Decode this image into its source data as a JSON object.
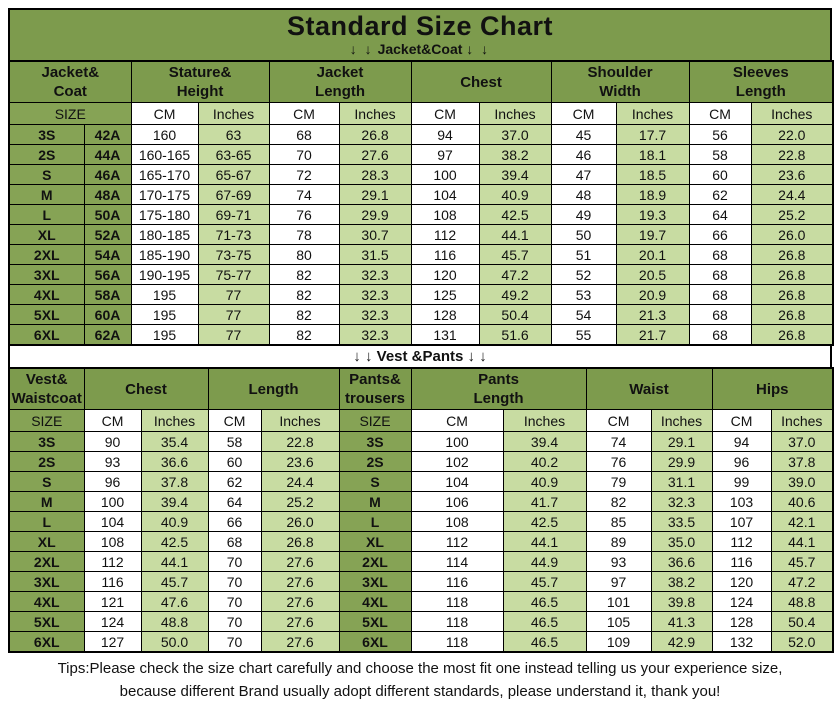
{
  "title": "Standard Size Chart",
  "banners": {
    "jacket": {
      "arrows_left": "↓ ↓",
      "label": "Jacket&Coat",
      "arrows_right": "↓ ↓"
    },
    "vest": {
      "arrows_left": "↓ ↓",
      "label": "Vest &Pants",
      "arrows_right": "↓ ↓"
    }
  },
  "colors": {
    "header_green": "#7d9b4d",
    "size_cell_green": "#86a355",
    "inches_cell_green": "#c8dca2",
    "cm_cell_white": "#ffffff",
    "border_black": "#000000",
    "text_black": "#111111"
  },
  "jacket_table": {
    "groups": [
      {
        "label": "Jacket&\nCoat",
        "span": 2
      },
      {
        "label": "Stature&\nHeight",
        "span": 2
      },
      {
        "label": "Jacket\nLength",
        "span": 2
      },
      {
        "label": "Chest",
        "span": 2
      },
      {
        "label": "Shoulder\nWidth",
        "span": 2
      },
      {
        "label": "Sleeves\nLength",
        "span": 2
      }
    ],
    "subheader": [
      {
        "label": "SIZE",
        "span": 2
      },
      {
        "label": "CM"
      },
      {
        "label": "Inches"
      },
      {
        "label": "CM"
      },
      {
        "label": "Inches"
      },
      {
        "label": "CM"
      },
      {
        "label": "Inches"
      },
      {
        "label": "CM"
      },
      {
        "label": "Inches"
      },
      {
        "label": "CM"
      },
      {
        "label": "Inches"
      }
    ],
    "rows": [
      [
        "3S",
        "42A",
        "160",
        "63",
        "68",
        "26.8",
        "94",
        "37.0",
        "45",
        "17.7",
        "56",
        "22.0"
      ],
      [
        "2S",
        "44A",
        "160-165",
        "63-65",
        "70",
        "27.6",
        "97",
        "38.2",
        "46",
        "18.1",
        "58",
        "22.8"
      ],
      [
        "S",
        "46A",
        "165-170",
        "65-67",
        "72",
        "28.3",
        "100",
        "39.4",
        "47",
        "18.5",
        "60",
        "23.6"
      ],
      [
        "M",
        "48A",
        "170-175",
        "67-69",
        "74",
        "29.1",
        "104",
        "40.9",
        "48",
        "18.9",
        "62",
        "24.4"
      ],
      [
        "L",
        "50A",
        "175-180",
        "69-71",
        "76",
        "29.9",
        "108",
        "42.5",
        "49",
        "19.3",
        "64",
        "25.2"
      ],
      [
        "XL",
        "52A",
        "180-185",
        "71-73",
        "78",
        "30.7",
        "112",
        "44.1",
        "50",
        "19.7",
        "66",
        "26.0"
      ],
      [
        "2XL",
        "54A",
        "185-190",
        "73-75",
        "80",
        "31.5",
        "116",
        "45.7",
        "51",
        "20.1",
        "68",
        "26.8"
      ],
      [
        "3XL",
        "56A",
        "190-195",
        "75-77",
        "82",
        "32.3",
        "120",
        "47.2",
        "52",
        "20.5",
        "68",
        "26.8"
      ],
      [
        "4XL",
        "58A",
        "195",
        "77",
        "82",
        "32.3",
        "125",
        "49.2",
        "53",
        "20.9",
        "68",
        "26.8"
      ],
      [
        "5XL",
        "60A",
        "195",
        "77",
        "82",
        "32.3",
        "128",
        "50.4",
        "54",
        "21.3",
        "68",
        "26.8"
      ],
      [
        "6XL",
        "62A",
        "195",
        "77",
        "82",
        "32.3",
        "131",
        "51.6",
        "55",
        "21.7",
        "68",
        "26.8"
      ]
    ]
  },
  "vest_table": {
    "groups": [
      {
        "label": "Vest&\nWaistcoat",
        "span": 1
      },
      {
        "label": "Chest",
        "span": 2
      },
      {
        "label": "Length",
        "span": 2
      },
      {
        "label": "Pants&\ntrousers",
        "span": 1
      },
      {
        "label": "Pants\nLength",
        "span": 2
      },
      {
        "label": "Waist",
        "span": 2
      },
      {
        "label": "Hips",
        "span": 2
      }
    ],
    "subheader": [
      {
        "label": "SIZE"
      },
      {
        "label": "CM"
      },
      {
        "label": "Inches"
      },
      {
        "label": "CM"
      },
      {
        "label": "Inches"
      },
      {
        "label": "SIZE"
      },
      {
        "label": "CM"
      },
      {
        "label": "Inches"
      },
      {
        "label": "CM"
      },
      {
        "label": "Inches"
      },
      {
        "label": "CM"
      },
      {
        "label": "Inches"
      }
    ],
    "rows": [
      [
        "3S",
        "90",
        "35.4",
        "58",
        "22.8",
        "3S",
        "100",
        "39.4",
        "74",
        "29.1",
        "94",
        "37.0"
      ],
      [
        "2S",
        "93",
        "36.6",
        "60",
        "23.6",
        "2S",
        "102",
        "40.2",
        "76",
        "29.9",
        "96",
        "37.8"
      ],
      [
        "S",
        "96",
        "37.8",
        "62",
        "24.4",
        "S",
        "104",
        "40.9",
        "79",
        "31.1",
        "99",
        "39.0"
      ],
      [
        "M",
        "100",
        "39.4",
        "64",
        "25.2",
        "M",
        "106",
        "41.7",
        "82",
        "32.3",
        "103",
        "40.6"
      ],
      [
        "L",
        "104",
        "40.9",
        "66",
        "26.0",
        "L",
        "108",
        "42.5",
        "85",
        "33.5",
        "107",
        "42.1"
      ],
      [
        "XL",
        "108",
        "42.5",
        "68",
        "26.8",
        "XL",
        "112",
        "44.1",
        "89",
        "35.0",
        "112",
        "44.1"
      ],
      [
        "2XL",
        "112",
        "44.1",
        "70",
        "27.6",
        "2XL",
        "114",
        "44.9",
        "93",
        "36.6",
        "116",
        "45.7"
      ],
      [
        "3XL",
        "116",
        "45.7",
        "70",
        "27.6",
        "3XL",
        "116",
        "45.7",
        "97",
        "38.2",
        "120",
        "47.2"
      ],
      [
        "4XL",
        "121",
        "47.6",
        "70",
        "27.6",
        "4XL",
        "118",
        "46.5",
        "101",
        "39.8",
        "124",
        "48.8"
      ],
      [
        "5XL",
        "124",
        "48.8",
        "70",
        "27.6",
        "5XL",
        "118",
        "46.5",
        "105",
        "41.3",
        "128",
        "50.4"
      ],
      [
        "6XL",
        "127",
        "50.0",
        "70",
        "27.6",
        "6XL",
        "118",
        "46.5",
        "109",
        "42.9",
        "132",
        "52.0"
      ]
    ]
  },
  "tips": {
    "line1": "Tips:Please check the size chart carefully and choose the most fit one instead telling us your experience size,",
    "line2": "because different Brand usually adopt different standards, please understand it, thank you!"
  }
}
